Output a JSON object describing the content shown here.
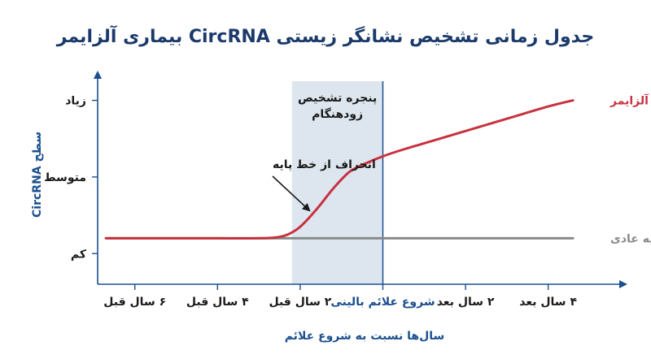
{
  "chart_data": {
    "type": "line",
    "title": "جدول زمانی تشخیص نشانگر زیستی CircRNA بیماری آلزایمر",
    "xlabel": "سال‌ها نسبت به شروع علائم",
    "ylabel": "سطح CircRNA",
    "xlim": [
      -6.9,
      5.7
    ],
    "ylim": [
      0.6,
      3.25
    ],
    "x_ticks": [
      {
        "value": -6,
        "label": "۶ سال قبل"
      },
      {
        "value": -4,
        "label": "۴ سال قبل"
      },
      {
        "value": -2,
        "label": "۲ سال قبل"
      },
      {
        "value": 0,
        "label": "شروع علائم بالینی"
      },
      {
        "value": 2,
        "label": "۲ سال بعد"
      },
      {
        "value": 4,
        "label": "۴ سال بعد"
      }
    ],
    "y_ticks": [
      {
        "value": 1,
        "label": "کم"
      },
      {
        "value": 2,
        "label": "متوسط"
      },
      {
        "value": 3,
        "label": "زیاد"
      }
    ],
    "series": [
      {
        "name": "خط پایه عادی",
        "color": "#8a8a8a",
        "x": [
          -6.7,
          -6,
          -5,
          -4,
          -3,
          -2,
          -1,
          0,
          1,
          2,
          3,
          4,
          4.6
        ],
        "y": [
          1.2,
          1.2,
          1.2,
          1.2,
          1.2,
          1.2,
          1.2,
          1.2,
          1.2,
          1.2,
          1.2,
          1.2,
          1.2
        ]
      },
      {
        "name": "بیماری آلزایمر",
        "color": "#c8313f",
        "x": [
          -6.7,
          -6,
          -5,
          -4,
          -3,
          -2.6,
          -2.3,
          -2,
          -1.6,
          -1.2,
          -0.8,
          -0.4,
          0,
          0.5,
          1,
          2,
          3,
          4,
          4.6
        ],
        "y": [
          1.2,
          1.2,
          1.2,
          1.2,
          1.2,
          1.21,
          1.25,
          1.35,
          1.58,
          1.85,
          2.07,
          2.18,
          2.27,
          2.36,
          2.44,
          2.6,
          2.76,
          2.92,
          3.0
        ]
      }
    ],
    "shaded_region": {
      "x0": -2.2,
      "x1": 0,
      "label_lines": [
        "پنجره تشخیص",
        "زودهنگام"
      ],
      "color": "#dde6ef"
    },
    "annotation": {
      "text": "انحراف از خط پایه",
      "point": [
        -1.7,
        1.5
      ]
    },
    "grid": false,
    "legend": "inline-right"
  }
}
